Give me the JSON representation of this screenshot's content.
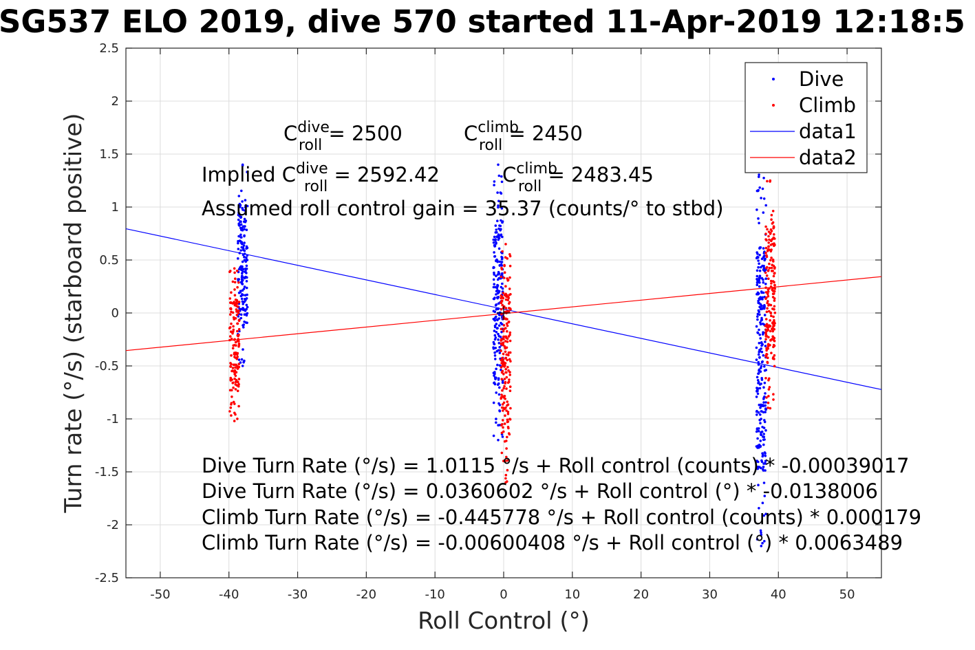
{
  "chart_data": {
    "type": "scatter",
    "title": "SG537 ELO 2019, dive 570 started 11-Apr-2019 12:18:5",
    "xlabel": "Roll Control (°)",
    "ylabel": "Turn rate (°/s) (starboard positive)",
    "xlim": [
      -55,
      55
    ],
    "ylim": [
      -2.5,
      2.5
    ],
    "xticks": [
      -50,
      -40,
      -30,
      -20,
      -10,
      0,
      10,
      20,
      30,
      40,
      50
    ],
    "xtick_labels": [
      "-50",
      "-40",
      "-30",
      "-20",
      "-10",
      "0",
      "10",
      "20",
      "30",
      "40",
      "50"
    ],
    "yticks": [
      -2.5,
      -2,
      -1.5,
      -1,
      -0.5,
      0,
      0.5,
      1,
      1.5,
      2,
      2.5
    ],
    "ytick_labels": [
      "-2.5",
      "-2",
      "-1.5",
      "-1",
      "-0.5",
      "0",
      "0.5",
      "1",
      "1.5",
      "2",
      "2.5"
    ],
    "grid": true,
    "legend_position": "top-right",
    "series": [
      {
        "name": "Dive",
        "style": "points",
        "color": "#0000ff",
        "clusters": [
          {
            "x": -38.0,
            "y_min": -0.5,
            "y_max": 1.4
          },
          {
            "x": -0.8,
            "y_min": -1.2,
            "y_max": 1.4
          },
          {
            "x": 37.5,
            "y_min": -2.2,
            "y_max": 1.35
          }
        ]
      },
      {
        "name": "Climb",
        "style": "points",
        "color": "#ff0000",
        "clusters": [
          {
            "x": -39.2,
            "y_min": -1.02,
            "y_max": 0.42
          },
          {
            "x": 0.3,
            "y_min": -1.6,
            "y_max": 0.65
          },
          {
            "x": 38.8,
            "y_min": -0.9,
            "y_max": 1.25
          }
        ]
      },
      {
        "name": "data1",
        "style": "line",
        "color": "#0000ff",
        "x": [
          -55,
          55
        ],
        "y": [
          0.795,
          -0.723
        ]
      },
      {
        "name": "data2",
        "style": "line",
        "color": "#ff0000",
        "x": [
          -55,
          55
        ],
        "y": [
          -0.355,
          0.343
        ]
      }
    ],
    "annotations": {
      "c_roll_dive_prefix": "C",
      "c_roll_dive_sup": "dive",
      "c_roll_dive_sub": "roll",
      "c_roll_dive_value": " = 2500",
      "c_roll_climb_prefix": "C",
      "c_roll_climb_sup": "climb",
      "c_roll_climb_sub": "roll",
      "c_roll_climb_value": " = 2450",
      "implied_prefix": "Implied C",
      "implied_dive_sup": "dive",
      "implied_dive_sub": "roll",
      "implied_dive_value": " = 2592.42",
      "implied_climb_prefix": "C",
      "implied_climb_sup": "climb",
      "implied_climb_sub": "roll",
      "implied_climb_value": " = 2483.45",
      "gain_line": "Assumed roll control gain = 35.37 (counts/° to stbd)",
      "eq1": "Dive Turn Rate (°/s) = 1.0115 °/s + Roll control (counts) * -0.00039017",
      "eq2": "Dive Turn Rate (°/s) = 0.0360602 °/s + Roll control (°) * -0.0138006",
      "eq3": "Climb Turn Rate (°/s) = -0.445778 °/s + Roll control (counts) * 0.000179",
      "eq4": "Climb Turn Rate (°/s) = -0.00600408 °/s + Roll control (°) * 0.0063489"
    }
  }
}
